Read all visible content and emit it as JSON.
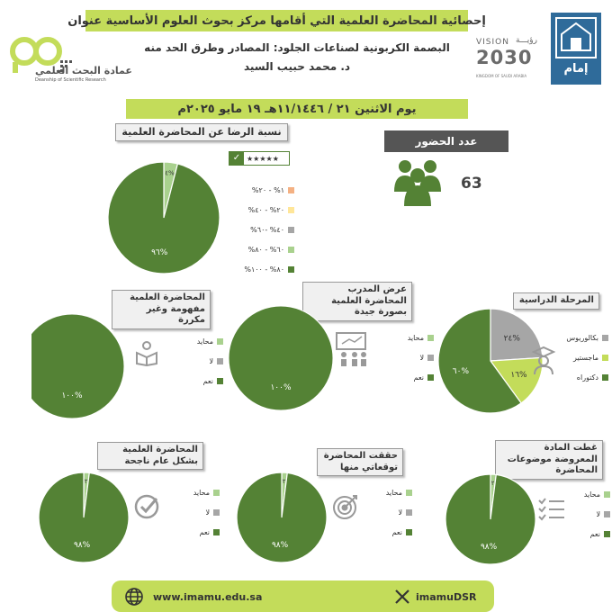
{
  "header": {
    "title": "إحصائية المحاضرة العلمية التي أقامها مركز بحوث العلوم الأساسية عنوان",
    "lecture_title": "البصمة الكربونية لصناعات الجلود: المصادر وطرق الحد منه",
    "lecturer": "د. محمد حبيب السيد",
    "date": "يوم الاثنين ٢١ / ١١/١٤٤٦هـ ١٩ مايو ٢٠٢٥م",
    "left_logo_text": "عمادة البحث العلمي",
    "left_logo_subtext": "Deanship of Scientific Research",
    "vision_word": "VISION",
    "vision_ar": "رؤيـــة",
    "vision_year": "2030",
    "vision_country": "KINGDOM OF SAUDI ARABIA",
    "university_logo_text": "إمام"
  },
  "attendance": {
    "title": "عدد الحضور",
    "count": "63"
  },
  "colors": {
    "dark_green": "#548235",
    "light_green": "#a9d18e",
    "lime": "#c3dc5a",
    "gray": "#a6a6a6",
    "pale_yellow": "#ffe699",
    "salmon": "#f4b183"
  },
  "chart_data": [
    {
      "id": "satisfaction",
      "type": "pie",
      "title": "نسبة الرضا عن المحاضرة العلمية",
      "categories": [
        "١% - ٢٠%",
        "٢٠% - ٤٠%",
        "٤٠% -٦٠%",
        "٦٠% - ٨٠%",
        "٨٠% - ١٠٠%"
      ],
      "values": [
        0,
        0,
        0,
        4,
        96
      ],
      "data_labels": [
        "",
        "",
        "",
        "٤%",
        "٩٦%"
      ],
      "colors": [
        "#f4b183",
        "#ffe699",
        "#a6a6a6",
        "#a9d18e",
        "#548235"
      ],
      "legend": "right"
    },
    {
      "id": "level",
      "type": "pie",
      "title": "المرحلة الدراسية",
      "categories": [
        "بكالوريوس",
        "ماجستير",
        "دكتوراه"
      ],
      "values": [
        24,
        16,
        60
      ],
      "data_labels": [
        "٢٤%",
        "١٦%",
        "٦٠%"
      ],
      "colors": [
        "#a6a6a6",
        "#c3dc5a",
        "#548235"
      ],
      "legend": "right"
    },
    {
      "id": "trainer",
      "type": "pie",
      "title": "عرض المدرب المحاضرة العلمية بصورة جيدة",
      "categories": [
        "محايد",
        "لا",
        "نعم"
      ],
      "values": [
        0,
        0,
        100
      ],
      "data_labels": [
        "",
        "",
        "١٠٠%"
      ],
      "colors": [
        "#a9d18e",
        "#a6a6a6",
        "#548235"
      ],
      "legend": "right"
    },
    {
      "id": "understood",
      "type": "pie",
      "title": "المحاضرة العلمية مفهومة وغير مكررة",
      "categories": [
        "محايد",
        "لا",
        "نعم"
      ],
      "values": [
        0,
        0,
        100
      ],
      "data_labels": [
        "",
        "",
        "١٠٠%"
      ],
      "colors": [
        "#a9d18e",
        "#a6a6a6",
        "#548235"
      ],
      "legend": "right"
    },
    {
      "id": "coverage",
      "type": "pie",
      "title": "غطت المادة المعروضة موضوعات المحاضرة",
      "categories": [
        "محايد",
        "لا",
        "نعم"
      ],
      "values": [
        2,
        0,
        98
      ],
      "data_labels": [
        "٢",
        "",
        "٩٨%"
      ],
      "colors": [
        "#a9d18e",
        "#a6a6a6",
        "#548235"
      ],
      "legend": "right"
    },
    {
      "id": "expectations",
      "type": "pie",
      "title": "حققت المحاضرة توقعاتي منها",
      "categories": [
        "محايد",
        "لا",
        "نعم"
      ],
      "values": [
        2,
        0,
        98
      ],
      "data_labels": [
        "٢",
        "",
        "٩٨%"
      ],
      "colors": [
        "#a9d18e",
        "#a6a6a6",
        "#548235"
      ],
      "legend": "right"
    },
    {
      "id": "success",
      "type": "pie",
      "title": "المحاضرة العلمية بشكل عام ناجحة",
      "categories": [
        "محايد",
        "لا",
        "نعم"
      ],
      "values": [
        2,
        0,
        98
      ],
      "data_labels": [
        "٢",
        "",
        "٩٨%"
      ],
      "colors": [
        "#a9d18e",
        "#a6a6a6",
        "#548235"
      ],
      "legend": "right"
    }
  ],
  "footer": {
    "website": "www.imamu.edu.sa",
    "social": "imamuDSR",
    "globe_icon": "globe-icon",
    "x_icon": "x-logo-icon"
  }
}
